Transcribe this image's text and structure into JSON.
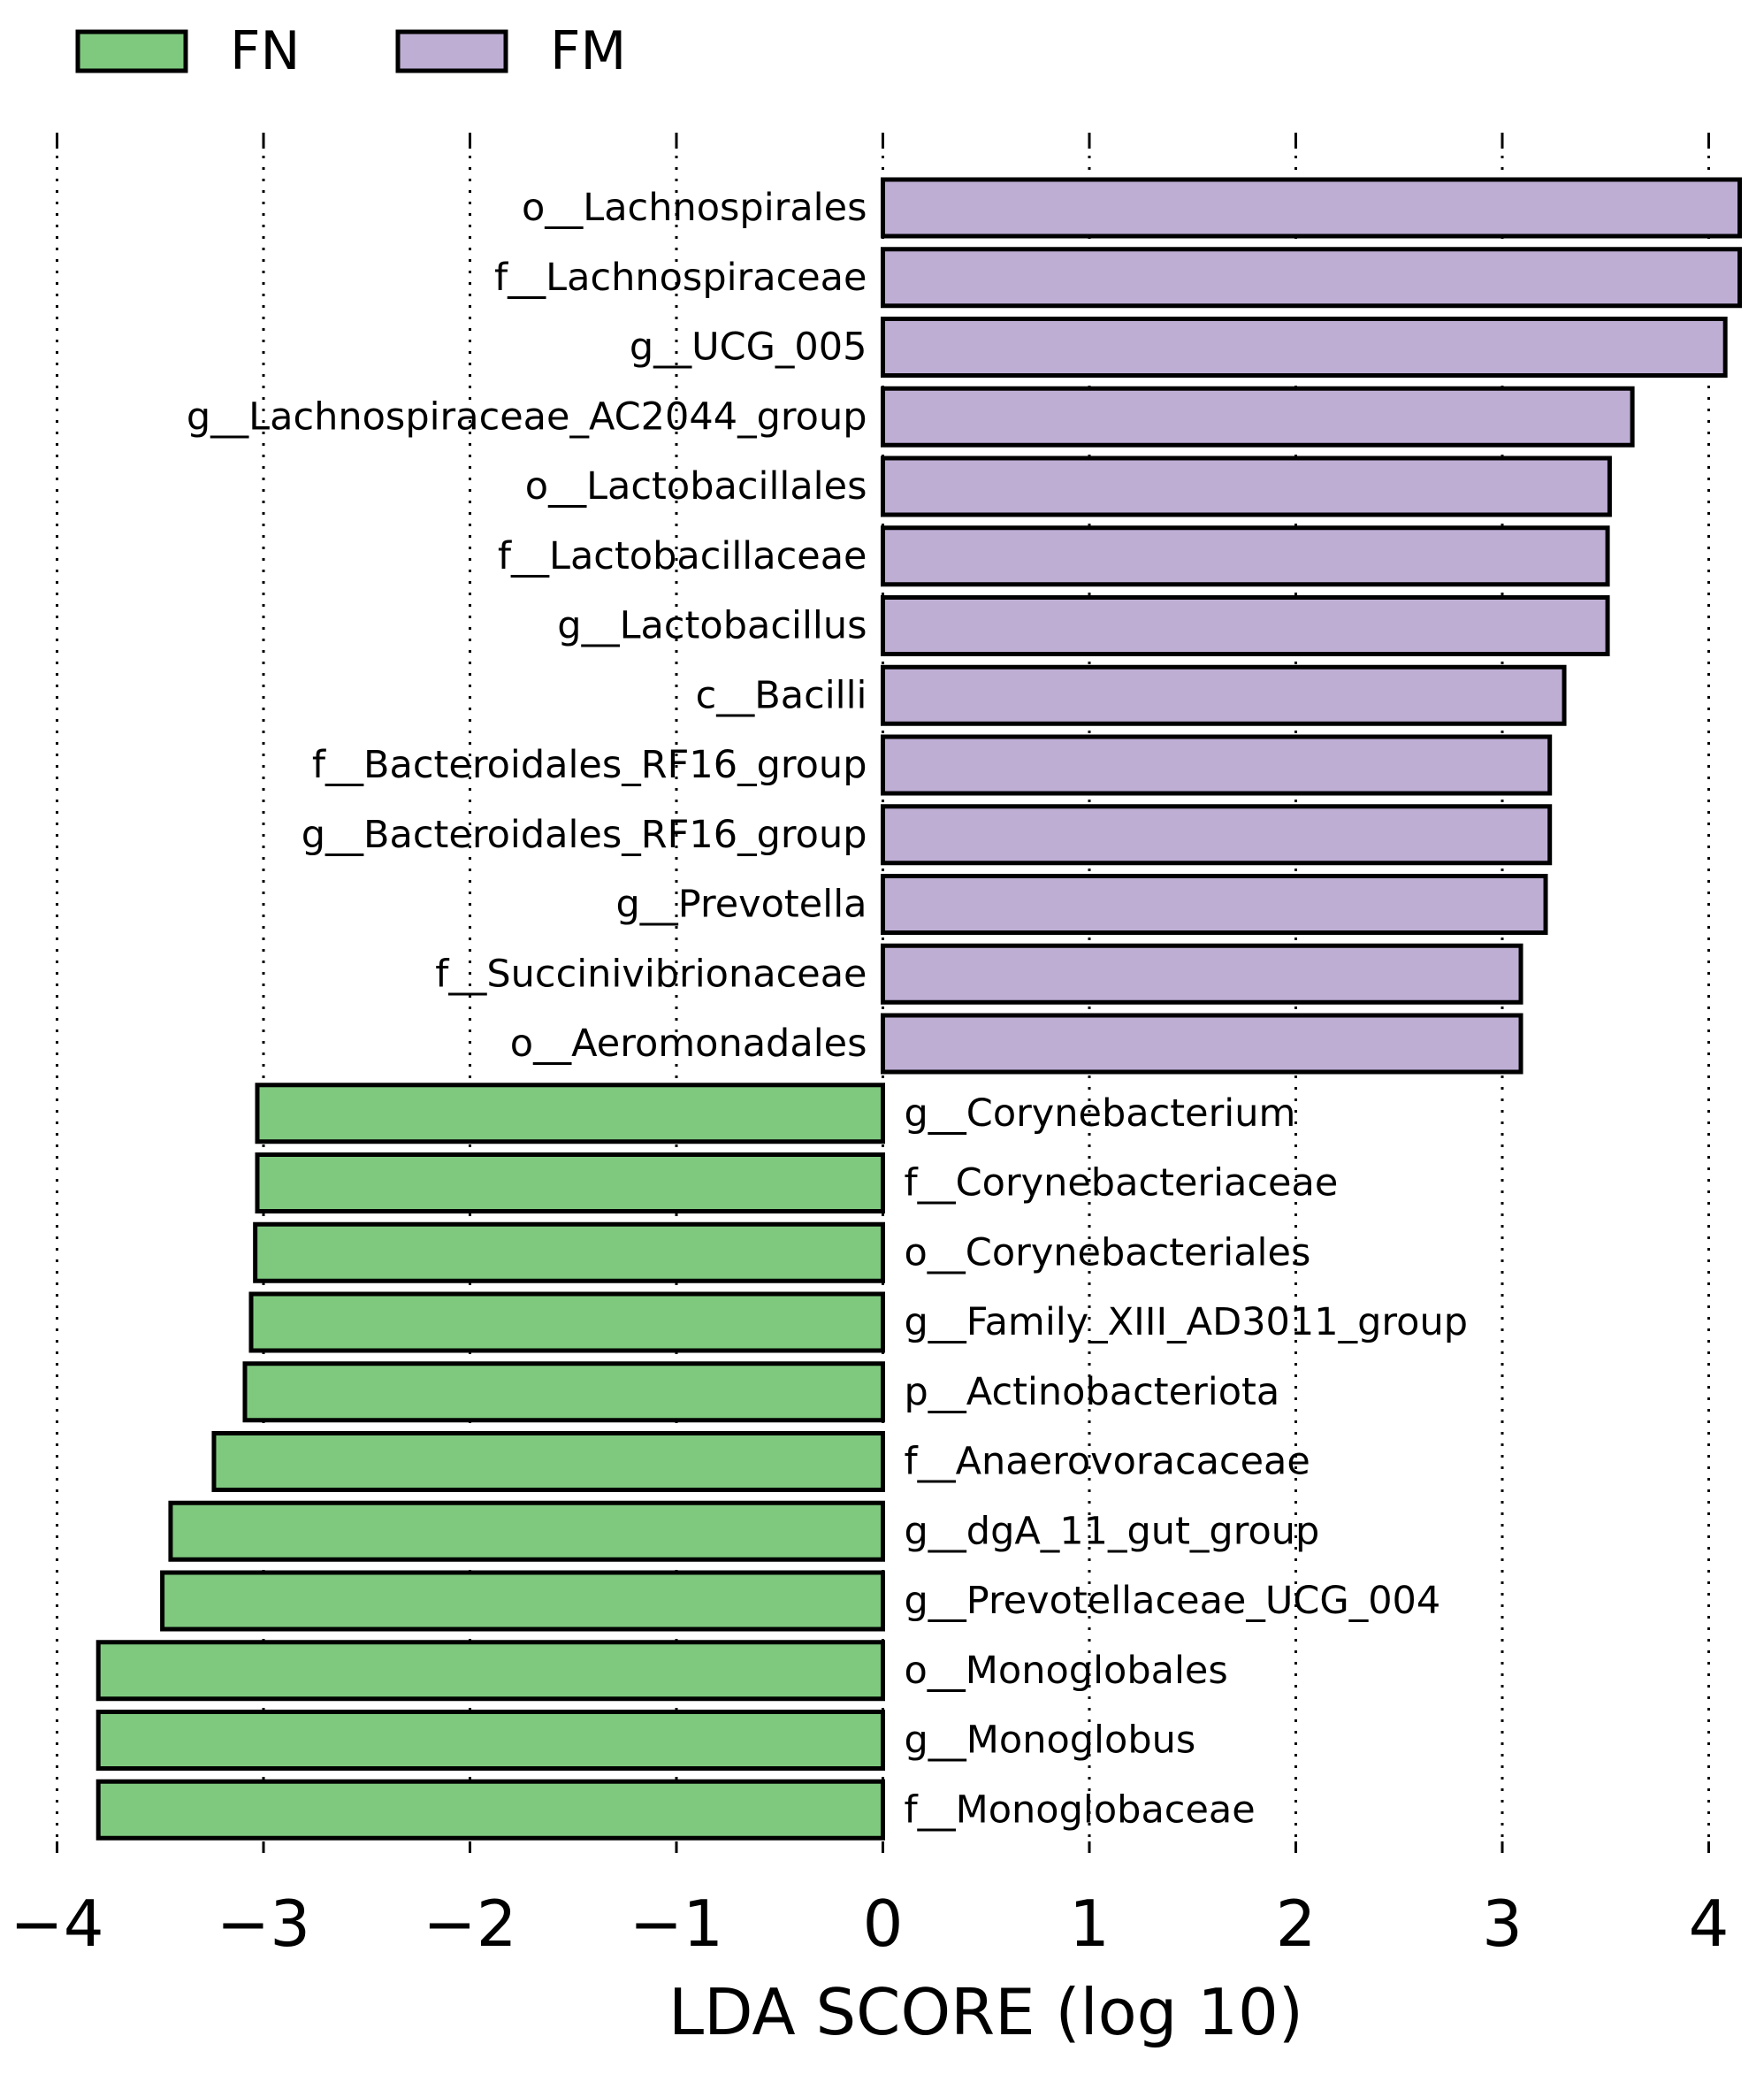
{
  "chart_data": {
    "type": "bar",
    "orientation": "horizontal",
    "title": "",
    "xlabel": "LDA SCORE (log 10)",
    "ylabel": "",
    "xlim": [
      -4,
      4.15
    ],
    "xticks": [
      -4,
      -3,
      -2,
      -1,
      0,
      1,
      2,
      3,
      4
    ],
    "xtick_labels": [
      "−4",
      "−3",
      "−2",
      "−1",
      "0",
      "1",
      "2",
      "3",
      "4"
    ],
    "grid": "vertical dotted",
    "legend": {
      "position": "top-left",
      "entries": [
        {
          "name": "FN",
          "color": "#7fc97f"
        },
        {
          "name": "FM",
          "color": "#beaed4"
        }
      ]
    },
    "bars": [
      {
        "label": "o__Lachnospirales",
        "value": 4.15,
        "group": "FM"
      },
      {
        "label": "f__Lachnospiraceae",
        "value": 4.15,
        "group": "FM"
      },
      {
        "label": "g__UCG_005",
        "value": 4.08,
        "group": "FM"
      },
      {
        "label": "g__Lachnospiraceae_AC2044_group",
        "value": 3.63,
        "group": "FM"
      },
      {
        "label": "o__Lactobacillales",
        "value": 3.52,
        "group": "FM"
      },
      {
        "label": "f__Lactobacillaceae",
        "value": 3.51,
        "group": "FM"
      },
      {
        "label": "g__Lactobacillus",
        "value": 3.51,
        "group": "FM"
      },
      {
        "label": "c__Bacilli",
        "value": 3.3,
        "group": "FM"
      },
      {
        "label": "f__Bacteroidales_RF16_group",
        "value": 3.23,
        "group": "FM"
      },
      {
        "label": "g__Bacteroidales_RF16_group",
        "value": 3.23,
        "group": "FM"
      },
      {
        "label": "g__Prevotella",
        "value": 3.21,
        "group": "FM"
      },
      {
        "label": "f__Succinivibrionaceae",
        "value": 3.09,
        "group": "FM"
      },
      {
        "label": "o__Aeromonadales",
        "value": 3.09,
        "group": "FM"
      },
      {
        "label": "g__Corynebacterium",
        "value": -3.03,
        "group": "FN"
      },
      {
        "label": "f__Corynebacteriaceae",
        "value": -3.03,
        "group": "FN"
      },
      {
        "label": "o__Corynebacteriales",
        "value": -3.04,
        "group": "FN"
      },
      {
        "label": "g__Family_XIII_AD3011_group",
        "value": -3.06,
        "group": "FN"
      },
      {
        "label": "p__Actinobacteriota",
        "value": -3.09,
        "group": "FN"
      },
      {
        "label": "f__Anaerovoracaceae",
        "value": -3.24,
        "group": "FN"
      },
      {
        "label": "g__dgA_11_gut_group",
        "value": -3.45,
        "group": "FN"
      },
      {
        "label": "g__Prevotellaceae_UCG_004",
        "value": -3.49,
        "group": "FN"
      },
      {
        "label": "o__Monoglobales",
        "value": -3.8,
        "group": "FN"
      },
      {
        "label": "g__Monoglobus",
        "value": -3.8,
        "group": "FN"
      },
      {
        "label": "f__Monoglobaceae",
        "value": -3.8,
        "group": "FN"
      }
    ]
  }
}
